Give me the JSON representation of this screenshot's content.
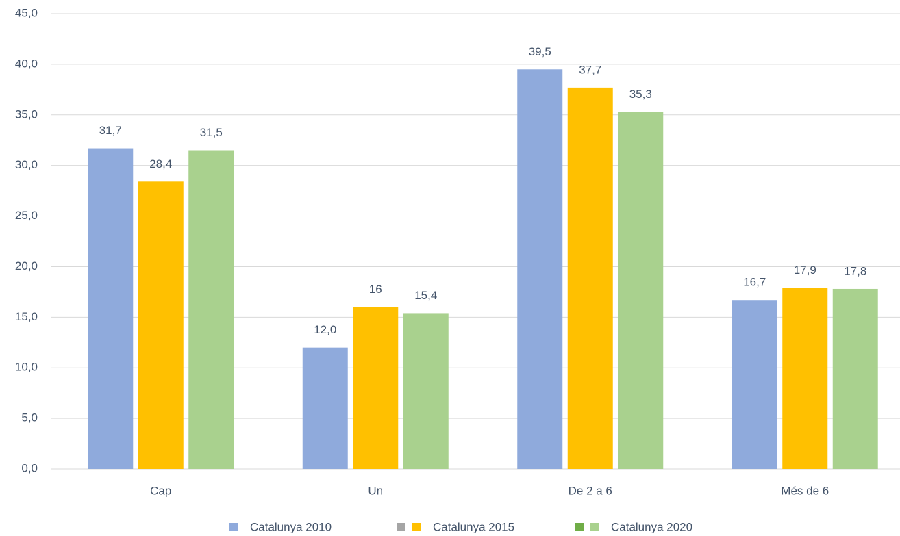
{
  "chart_data": {
    "type": "bar",
    "categories": [
      "Cap",
      "Un",
      "De 2 a 6",
      "Més de 6"
    ],
    "series": [
      {
        "name": "Catalunya 2010",
        "color": "#8faadc",
        "values": [
          31.7,
          12.0,
          39.5,
          16.7
        ],
        "value_labels": [
          "31,7",
          "12,0",
          "39,5",
          "16,7"
        ]
      },
      {
        "name": "Catalunya 2015",
        "color": "#ffc000",
        "values": [
          28.4,
          16,
          37.7,
          17.9
        ],
        "value_labels": [
          "28,4",
          "16",
          "37,7",
          "17,9"
        ]
      },
      {
        "name": "Catalunya 2020",
        "color": "#a9d18e",
        "values": [
          31.5,
          15.4,
          35.3,
          17.8
        ],
        "value_labels": [
          "31,5",
          "15,4",
          "35,3",
          "17,8"
        ]
      }
    ],
    "ylim": [
      0,
      45
    ],
    "yticks": [
      {
        "value": 0,
        "label": "0,0"
      },
      {
        "value": 5,
        "label": "5,0"
      },
      {
        "value": 10,
        "label": "10,0"
      },
      {
        "value": 15,
        "label": "15,0"
      },
      {
        "value": 20,
        "label": "20,0"
      },
      {
        "value": 25,
        "label": "25,0"
      },
      {
        "value": 30,
        "label": "30,0"
      },
      {
        "value": 35,
        "label": "35,0"
      },
      {
        "value": 40,
        "label": "40,0"
      },
      {
        "value": 45,
        "label": "45,0"
      }
    ],
    "grid": true,
    "legend": "bottom"
  }
}
